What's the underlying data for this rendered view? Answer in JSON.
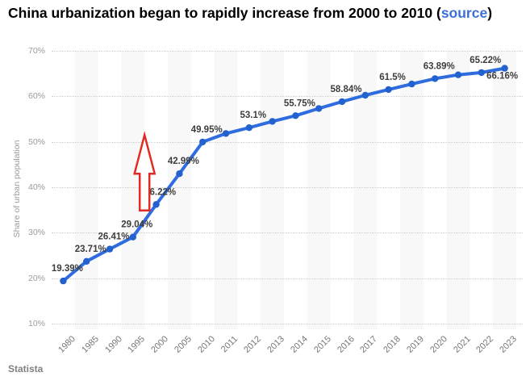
{
  "title": {
    "before": "China urbanization began to rapidly increase from 2000 to 2010 (",
    "link_text": "source",
    "after": ")"
  },
  "footer": {
    "brand": "Statista"
  },
  "colors": {
    "line": "#2e6ce0",
    "marker": "#2361cf",
    "link": "#3c6fd8",
    "data_label": "#3d3d3d",
    "axis_text": "#9b9b9b",
    "grid": "#cfcfcf",
    "band": "#f8f8f8",
    "arrow": "#e32b25"
  },
  "chart_data": {
    "type": "line",
    "title": "China urbanization began to rapidly increase from 2000 to 2010",
    "xlabel": "",
    "ylabel": "Share of urban population",
    "ylim": [
      10,
      70
    ],
    "grid": "horizontal-dotted",
    "legend": "none",
    "categories": [
      "1980",
      "1985",
      "1990",
      "1995",
      "2000",
      "2005",
      "2010",
      "2011",
      "2012",
      "2013",
      "2014",
      "2015",
      "2016",
      "2017",
      "2018",
      "2019",
      "2020",
      "2021",
      "2022",
      "2023"
    ],
    "series": [
      {
        "name": "Share of urban population",
        "values": [
          19.39,
          23.71,
          26.41,
          29.04,
          36.22,
          42.99,
          49.95,
          51.83,
          53.1,
          54.49,
          55.75,
          57.33,
          58.84,
          60.24,
          61.5,
          62.71,
          63.89,
          64.72,
          65.22,
          66.16
        ]
      }
    ],
    "point_labels": [
      "19.39%",
      "23.71%",
      "26.41%",
      "29.04%",
      "36.22%",
      "42.99%",
      "49.95%",
      "",
      "53.1%",
      "",
      "55.75%",
      "",
      "58.84%",
      "",
      "61.5%",
      "",
      "63.89%",
      "",
      "65.22%",
      "66.16%"
    ],
    "y_ticks": [
      {
        "value": 10,
        "label": "10%"
      },
      {
        "value": 20,
        "label": "20%"
      },
      {
        "value": 30,
        "label": "30%"
      },
      {
        "value": 40,
        "label": "40%"
      },
      {
        "value": 50,
        "label": "50%"
      },
      {
        "value": 60,
        "label": "60%"
      },
      {
        "value": 70,
        "label": "70%"
      }
    ],
    "annotation": {
      "shape": "up-arrow-outline",
      "between": [
        "1995",
        "2000"
      ],
      "y_from_pct": 34.9,
      "y_to_pct": 51.5
    }
  }
}
